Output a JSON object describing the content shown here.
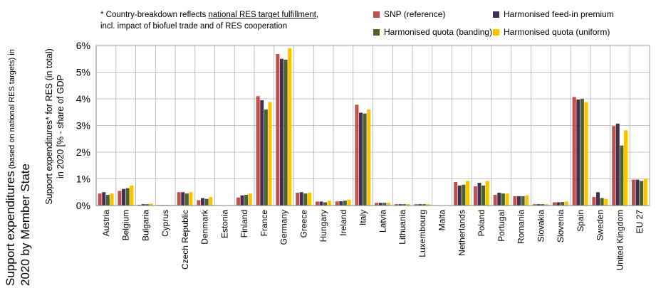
{
  "side_title": {
    "line1_main": "Support expenditures",
    "line1_small": " (based on national RES targets) in",
    "line2": "2020 by Member State"
  },
  "note": {
    "line1_prefix": "* Country-breakdown reflects ",
    "line1_underlined": "national RES target fulfillment",
    "line1_suffix": ",",
    "line2": "incl. impact of biofuel trade and of RES cooperation"
  },
  "chart_data": {
    "type": "bar",
    "ylabel_line1": "Support expenditures* for RES (in total)",
    "ylabel_line2": "in 2020 [% - share of GDP",
    "ylim": [
      0,
      6
    ],
    "yticks": [
      "0%",
      "1%",
      "2%",
      "3%",
      "4%",
      "5%",
      "6%"
    ],
    "grid": true,
    "legend_position": "top-right",
    "categories": [
      "Austria",
      "Belgium",
      "Bulgaria",
      "Cyprus",
      "Czech Republic",
      "Denmark",
      "Estonia",
      "Finland",
      "France",
      "Germany",
      "Greece",
      "Hungary",
      "Ireland",
      "Italy",
      "Latvia",
      "Lithuania",
      "Luxembourg",
      "Malta",
      "Netherlands",
      "Poland",
      "Portugal",
      "Romania",
      "Slovakia",
      "Slovenia",
      "Spain",
      "Sweden",
      "United Kingdom",
      "EU 27"
    ],
    "series": [
      {
        "name": "SNP (reference)",
        "color": "#c0504d",
        "values": [
          0.45,
          0.55,
          0.03,
          0.02,
          0.5,
          0.2,
          0.0,
          0.3,
          4.1,
          5.68,
          0.48,
          0.15,
          0.15,
          3.78,
          0.1,
          0.05,
          0.05,
          0.0,
          0.88,
          0.72,
          0.4,
          0.35,
          0.05,
          0.12,
          4.07,
          0.32,
          2.98,
          0.97
        ]
      },
      {
        "name": "Harmonised feed-in premium",
        "color": "#403152",
        "values": [
          0.5,
          0.62,
          0.05,
          0.02,
          0.5,
          0.28,
          0.0,
          0.38,
          3.95,
          5.5,
          0.5,
          0.15,
          0.16,
          3.48,
          0.1,
          0.05,
          0.05,
          0.0,
          0.75,
          0.85,
          0.48,
          0.35,
          0.05,
          0.12,
          3.97,
          0.5,
          3.07,
          0.97
        ]
      },
      {
        "name": "Harmonised quota (banding)",
        "color": "#4f6228",
        "values": [
          0.4,
          0.65,
          0.05,
          0.02,
          0.45,
          0.25,
          0.0,
          0.4,
          3.6,
          5.47,
          0.45,
          0.12,
          0.18,
          3.45,
          0.1,
          0.05,
          0.05,
          0.0,
          0.78,
          0.75,
          0.45,
          0.35,
          0.05,
          0.13,
          4.0,
          0.28,
          2.25,
          0.92
        ]
      },
      {
        "name": "Harmonised quota (uniform)",
        "color": "#ffc000",
        "values": [
          0.45,
          0.75,
          0.07,
          0.02,
          0.5,
          0.32,
          0.0,
          0.45,
          3.88,
          5.9,
          0.48,
          0.18,
          0.22,
          3.6,
          0.1,
          0.05,
          0.05,
          0.0,
          0.92,
          0.92,
          0.45,
          0.38,
          0.05,
          0.15,
          3.88,
          0.25,
          2.82,
          1.0
        ]
      }
    ]
  }
}
